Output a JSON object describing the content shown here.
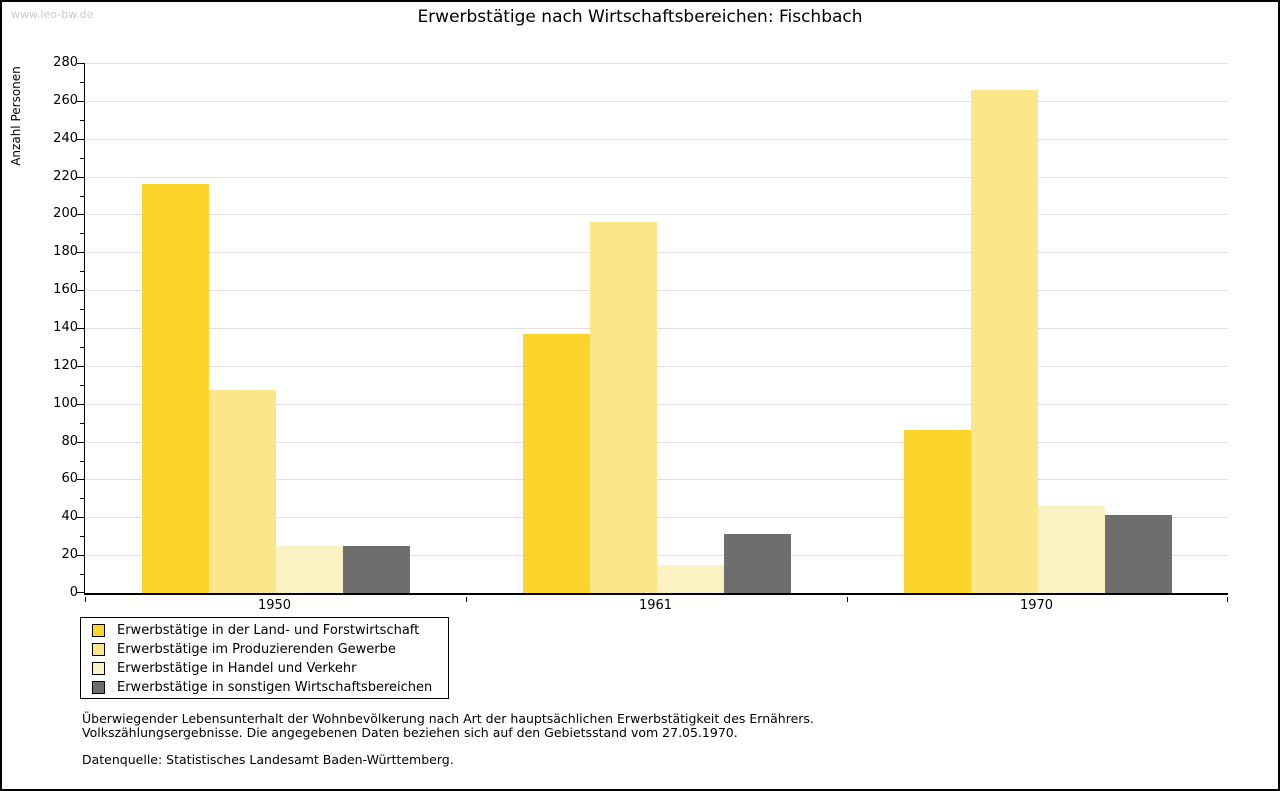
{
  "page": {
    "watermark": "www.leo-bw.de"
  },
  "chart_data": {
    "type": "bar",
    "title": "Erwerbstätige nach Wirtschaftsbereichen: Fischbach",
    "categories": [
      "1950",
      "1961",
      "1970"
    ],
    "series": [
      {
        "name": "Erwerbstätige in der Land- und Forstwirtschaft",
        "color": "#FCD42C",
        "values": [
          216,
          137,
          86
        ]
      },
      {
        "name": "Erwerbstätige im Produzierenden Gewerbe",
        "color": "#FBE68A",
        "values": [
          107,
          196,
          266
        ]
      },
      {
        "name": "Erwerbstätige in Handel und Verkehr",
        "color": "#FBF2C4",
        "values": [
          25,
          15,
          46
        ]
      },
      {
        "name": "Erwerbstätige in sonstigen Wirtschaftsbereichen",
        "color": "#6E6E6E",
        "values": [
          25,
          31,
          41
        ]
      }
    ],
    "xlabel": "",
    "ylabel": "Anzahl Personen",
    "ylim": [
      0,
      280
    ],
    "ytick_step": 20,
    "ytick_minor_step": 10,
    "grid": true,
    "legend_position": "bottom-left"
  },
  "footer": {
    "note_line1": "Überwiegender Lebensunterhalt der Wohnbevölkerung nach Art der hauptsächlichen Erwerbstätigkeit des Ernährers.",
    "note_line2": "Volkszählungsergebnisse. Die angegebenen Daten beziehen sich auf den Gebietsstand vom 27.05.1970.",
    "source": "Datenquelle: Statistisches Landesamt Baden-Württemberg."
  }
}
